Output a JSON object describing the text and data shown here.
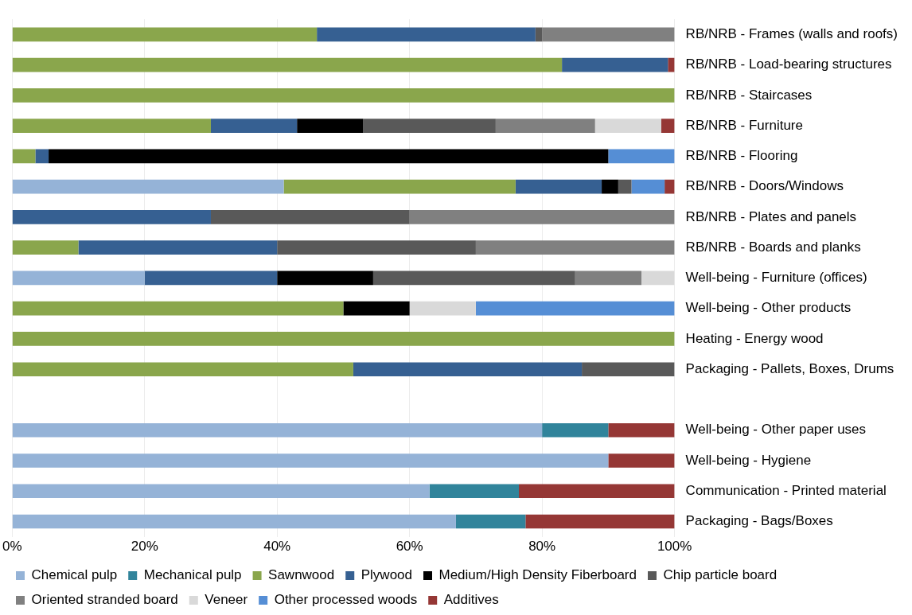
{
  "chart_data": {
    "type": "bar",
    "orientation": "horizontal",
    "stacked": true,
    "categories": [
      "RB/NRB - Frames (walls and roofs)",
      "RB/NRB - Load-bearing structures",
      "RB/NRB - Staircases",
      "RB/NRB - Furniture",
      "RB/NRB - Flooring",
      "RB/NRB - Doors/Windows",
      "RB/NRB - Plates and panels",
      "RB/NRB - Boards and planks",
      "Well-being - Furniture (offices)",
      "Well-being - Other products",
      "Heating - Energy wood",
      "Packaging - Pallets, Boxes, Drums",
      null,
      "Well-being - Other paper uses",
      "Well-being - Hygiene",
      "Communication - Printed material",
      "Packaging - Bags/Boxes"
    ],
    "series": [
      {
        "name": "Chemical pulp",
        "color": "#95b3d7",
        "values": [
          null,
          null,
          null,
          null,
          null,
          41,
          null,
          null,
          20,
          null,
          null,
          null,
          null,
          80,
          90,
          63,
          67
        ]
      },
      {
        "name": "Mechanical pulp",
        "color": "#31849b",
        "values": [
          null,
          null,
          null,
          null,
          null,
          null,
          null,
          null,
          null,
          null,
          null,
          null,
          null,
          10,
          null,
          13.5,
          10.5
        ]
      },
      {
        "name": "Sawnwood",
        "color": "#8aa64c",
        "values": [
          46,
          83,
          100,
          30,
          3.5,
          35,
          null,
          10,
          null,
          50,
          100,
          51.5,
          null,
          null,
          null,
          null,
          null
        ]
      },
      {
        "name": "Plywood",
        "color": "#366092",
        "values": [
          33,
          16,
          null,
          13,
          2,
          13,
          30,
          30,
          20,
          null,
          null,
          34.5,
          null,
          null,
          null,
          null,
          null
        ]
      },
      {
        "name": "Medium/High Density Fiberboard",
        "color": "#000000",
        "values": [
          null,
          null,
          null,
          10,
          84.5,
          2.5,
          null,
          null,
          14.5,
          10,
          null,
          null,
          null,
          null,
          null,
          null,
          null
        ]
      },
      {
        "name": "Chip particle board",
        "color": "#595959",
        "values": [
          1,
          null,
          null,
          20,
          null,
          2,
          30,
          30,
          30.5,
          null,
          null,
          14,
          null,
          null,
          null,
          null,
          null
        ]
      },
      {
        "name": "Oriented stranded board",
        "color": "#808080",
        "values": [
          20,
          null,
          null,
          15,
          null,
          null,
          40,
          30,
          10,
          null,
          null,
          null,
          null,
          null,
          null,
          null,
          null
        ]
      },
      {
        "name": "Veneer",
        "color": "#d9d9d9",
        "values": [
          null,
          null,
          null,
          10,
          null,
          null,
          null,
          null,
          5,
          10,
          null,
          null,
          null,
          null,
          null,
          null,
          null
        ]
      },
      {
        "name": "Other processed woods",
        "color": "#558ed5",
        "values": [
          null,
          null,
          null,
          null,
          10,
          5,
          null,
          null,
          null,
          30,
          null,
          null,
          null,
          null,
          null,
          null,
          null
        ]
      },
      {
        "name": "Additives",
        "color": "#953735",
        "values": [
          null,
          1,
          null,
          2,
          null,
          1.5,
          null,
          null,
          null,
          null,
          null,
          null,
          null,
          10,
          10,
          23.5,
          22.5
        ]
      }
    ],
    "xlim": [
      0,
      100
    ],
    "xticks": [
      {
        "value": 0,
        "label": "0%"
      },
      {
        "value": 20,
        "label": "20%"
      },
      {
        "value": 40,
        "label": "40%"
      },
      {
        "value": 60,
        "label": "60%"
      },
      {
        "value": 80,
        "label": "80%"
      },
      {
        "value": 100,
        "label": "100%"
      }
    ],
    "grid": "x",
    "legend": "bottom"
  }
}
